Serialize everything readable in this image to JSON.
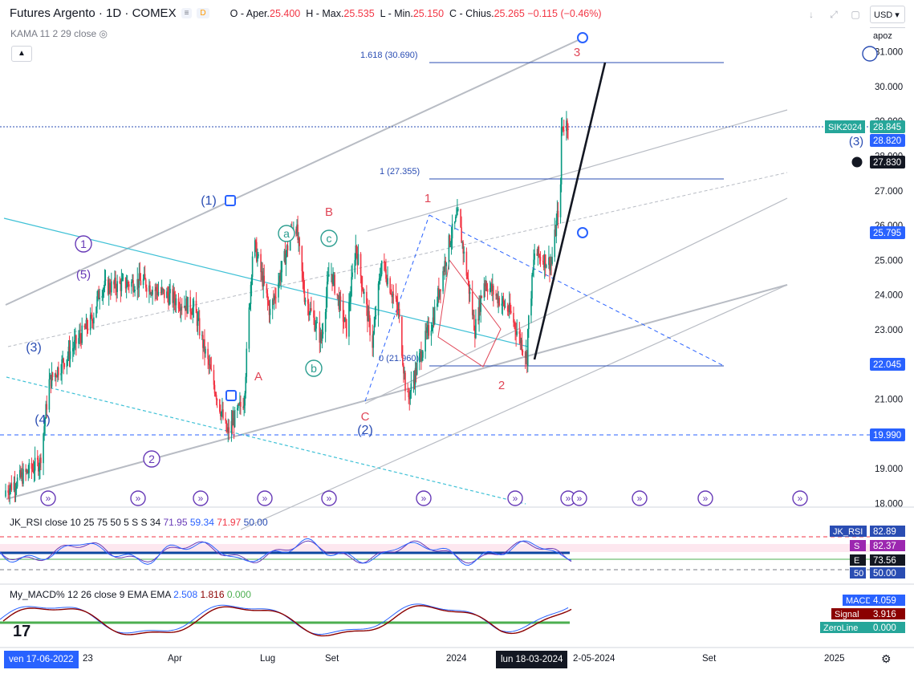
{
  "header": {
    "symbol": "Futures Argento · 1D · COMEX",
    "pill_a": "≡",
    "pill_b": "D",
    "ohlc_o_label": "O - Aper.",
    "ohlc_o": "25.400",
    "ohlc_h_label": "H - Max.",
    "ohlc_h": "25.535",
    "ohlc_l_label": "L - Min.",
    "ohlc_l": "25.150",
    "ohlc_c_label": "C - Chius.",
    "ohlc_c": "25.265",
    "change": "−0.115 (−0.46%)",
    "indicator": "KAMA 11 2 29 close",
    "currency": "USD",
    "scale_mode": "apoz"
  },
  "colors": {
    "up": "#089981",
    "down": "#f23645",
    "blue": "#2962ff",
    "elliott_blue": "#2a4db3",
    "elliott_purple": "#673ab7",
    "elliott_red": "#e04657",
    "elliott_teal": "#2a9d8f",
    "cyan": "#3fc1d6",
    "grey": "#b2b5be"
  },
  "chart_data": {
    "type": "candlestick",
    "title": "Futures Argento · 1D · COMEX",
    "ylim": [
      18.0,
      31.6
    ],
    "y_ticks": [
      "18.000",
      "19.000",
      "20.000",
      "21.000",
      "22.000",
      "23.000",
      "24.000",
      "25.000",
      "26.000",
      "27.000",
      "28.000",
      "29.000",
      "30.000",
      "31.000"
    ],
    "x_ticks": [
      "23",
      "Apr",
      "Lug",
      "Set",
      "2024",
      "Set",
      "2025"
    ],
    "price_path": [
      [
        "2022-06",
        18.2
      ],
      [
        "2022-07",
        19.2
      ],
      [
        "2022-08",
        21.5
      ],
      [
        "2022-09",
        23.3
      ],
      [
        "2022-10",
        24.2
      ],
      [
        "2022-11",
        24.4
      ],
      [
        "2022-12",
        24.2
      ],
      [
        "2023-01",
        23.6
      ],
      [
        "2023-02",
        22.5
      ],
      [
        "2023-03",
        21.0
      ],
      [
        "2023-03",
        20.0
      ],
      [
        "2023-04",
        23.5
      ],
      [
        "2023-04",
        25.6
      ],
      [
        "2023-05",
        26.2
      ],
      [
        "2023-06",
        24.0
      ],
      [
        "2023-06",
        22.7
      ],
      [
        "2023-07",
        24.8
      ],
      [
        "2023-07",
        23.0
      ],
      [
        "2023-08",
        25.4
      ],
      [
        "2023-08",
        22.6
      ],
      [
        "2023-09",
        25.0
      ],
      [
        "2023-09",
        23.5
      ],
      [
        "2023-10",
        20.9
      ],
      [
        "2023-10",
        22.6
      ],
      [
        "2023-11",
        23.3
      ],
      [
        "2023-11",
        25.6
      ],
      [
        "2023-12",
        26.3
      ],
      [
        "2023-12",
        23.0
      ],
      [
        "2024-01",
        24.4
      ],
      [
        "2024-02",
        22.2
      ],
      [
        "2024-02",
        23.5
      ],
      [
        "2024-02",
        22.7
      ],
      [
        "2024-03",
        25.2
      ],
      [
        "2024-03",
        24.9
      ],
      [
        "2024-04",
        27.0
      ],
      [
        "2024-04",
        29.2
      ],
      [
        "2024-04",
        28.8
      ]
    ],
    "levels": [
      {
        "label": "1.618 (30.690)",
        "value": 30.69
      },
      {
        "label": "1 (27.355)",
        "value": 27.355
      },
      {
        "label": "0 (21.960)",
        "value": 21.96
      }
    ],
    "elliott_labels": [
      "(1)",
      "(2)",
      "(3)",
      "(4)",
      "(5)",
      "1",
      "2",
      "3",
      "A",
      "B",
      "C",
      "a",
      "b",
      "c"
    ],
    "price_labels": [
      {
        "name": "SIK2024",
        "value": "28.845"
      },
      {
        "name": "",
        "value": "28.820"
      },
      {
        "name": "",
        "value": "27.830"
      },
      {
        "name": "",
        "value": "25.795"
      },
      {
        "name": "",
        "value": "22.045"
      },
      {
        "name": "",
        "value": "19.990"
      }
    ]
  },
  "rsi_pane": {
    "name": "JK_RSI",
    "params": "close 10 25 75 50 5 S S 34",
    "v1": "71.95",
    "v2": "59.34",
    "v3": "71.97",
    "v4": "50.00",
    "tags": [
      {
        "name": "JK_RSI",
        "value": "82.89"
      },
      {
        "name": "S",
        "value": "82.37"
      },
      {
        "name": "E",
        "value": "73.56"
      },
      {
        "name": "50",
        "value": "50.00"
      }
    ]
  },
  "macd_pane": {
    "name": "My_MACD%",
    "params": "12 26 close 9 EMA EMA",
    "v1": "2.508",
    "v2": "1.816",
    "v3": "0.000",
    "tags": [
      {
        "name": "MACD",
        "value": "4.059"
      },
      {
        "name": "Signal",
        "value": "3.916"
      },
      {
        "name": "ZeroLine",
        "value": "0.000"
      }
    ]
  },
  "xaxis": {
    "date_left": "ven 17-06-2022",
    "t_23": "23",
    "t_apr": "Apr",
    "t_lug": "Lug",
    "t_set": "Set",
    "t_2024": "2024",
    "cursor": "lun 18-03-2024",
    "t_may": "2-05-2024",
    "t_set2": "Set",
    "t_2025": "2025"
  }
}
